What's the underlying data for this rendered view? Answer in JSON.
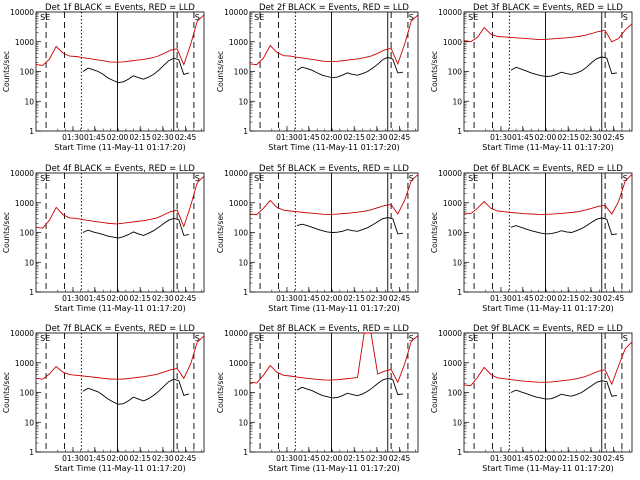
{
  "chart_data": [
    {
      "type": "line",
      "title": "Det 1f BLACK = Events, RED = LLD",
      "xlabel": "Start Time (11-May-11 01:17:20)",
      "ylabel": "Counts/sec",
      "x_tick_labels": [
        "01:30",
        "01:45",
        "02:00",
        "02:15",
        "02:30",
        "02:45"
      ],
      "y_tick_labels": [
        "1",
        "10",
        "100",
        "1000",
        "10000"
      ],
      "markers": [
        "S",
        "E",
        "S"
      ],
      "ylim": [
        1,
        10000
      ],
      "yscale": "log",
      "series": [
        {
          "name": "Events",
          "color": "#000000",
          "values": [
            0,
            0,
            0,
            0,
            100,
            130,
            115,
            100,
            80,
            60,
            50,
            42,
            45,
            55,
            72,
            62,
            55,
            65,
            80,
            110,
            160,
            230,
            280,
            250,
            80,
            90
          ]
        },
        {
          "name": "LLD",
          "color": "#cc0000",
          "values": [
            170,
            160,
            260,
            700,
            420,
            330,
            320,
            290,
            270,
            250,
            230,
            210,
            205,
            210,
            225,
            240,
            255,
            280,
            320,
            400,
            520,
            580,
            170,
            800,
            5000,
            8000
          ]
        }
      ]
    },
    {
      "type": "line",
      "title": "Det 2f BLACK = Events, RED = LLD",
      "xlabel": "Start Time (11-May-11 01:17:20)",
      "ylabel": "Counts/sec",
      "x_tick_labels": [
        "01:30",
        "01:45",
        "02:00",
        "02:15",
        "02:30",
        "02:45"
      ],
      "y_tick_labels": [
        "1",
        "10",
        "100",
        "1000",
        "10000"
      ],
      "markers": [
        "S",
        "E",
        "S"
      ],
      "ylim": [
        1,
        10000
      ],
      "yscale": "log",
      "series": [
        {
          "name": "Events",
          "color": "#000000",
          "values": [
            0,
            0,
            0,
            0,
            110,
            140,
            125,
            110,
            90,
            75,
            68,
            62,
            65,
            75,
            90,
            80,
            75,
            85,
            100,
            130,
            175,
            250,
            300,
            260,
            90,
            95
          ]
        },
        {
          "name": "LLD",
          "color": "#cc0000",
          "values": [
            180,
            170,
            280,
            750,
            440,
            340,
            330,
            300,
            280,
            260,
            240,
            220,
            215,
            220,
            235,
            250,
            265,
            290,
            330,
            410,
            530,
            600,
            180,
            820,
            5000,
            8000
          ]
        }
      ]
    },
    {
      "type": "line",
      "title": "Det 3f BLACK = Events, RED = LLD",
      "xlabel": "Start Time (11-May-11 01:17:20)",
      "ylabel": "Counts/sec",
      "x_tick_labels": [
        "01:30",
        "01:45",
        "02:00",
        "02:15",
        "02:30",
        "02:45"
      ],
      "y_tick_labels": [
        "1",
        "10",
        "100",
        "1000",
        "10000"
      ],
      "markers": [
        "S",
        "E",
        "S"
      ],
      "ylim": [
        1,
        10000
      ],
      "yscale": "log",
      "series": [
        {
          "name": "Events",
          "color": "#000000",
          "values": [
            0,
            0,
            0,
            0,
            110,
            140,
            120,
            105,
            90,
            80,
            72,
            68,
            70,
            80,
            95,
            85,
            80,
            90,
            105,
            140,
            200,
            270,
            310,
            280,
            85,
            90
          ]
        },
        {
          "name": "LLD",
          "color": "#cc0000",
          "values": [
            1100,
            1000,
            1400,
            3000,
            1800,
            1500,
            1450,
            1400,
            1350,
            1300,
            1250,
            1200,
            1200,
            1250,
            1300,
            1350,
            1400,
            1500,
            1650,
            1900,
            2200,
            2400,
            1000,
            1300,
            2500,
            4000
          ]
        }
      ]
    },
    {
      "type": "line",
      "title": "Det 4f BLACK = Events, RED = LLD",
      "xlabel": "Start Time (11-May-11 01:17:20)",
      "ylabel": "Counts/sec",
      "x_tick_labels": [
        "01:30",
        "01:45",
        "02:00",
        "02:15",
        "02:30",
        "02:45"
      ],
      "y_tick_labels": [
        "1",
        "10",
        "100",
        "1000",
        "10000"
      ],
      "markers": [
        "S",
        "E",
        "S"
      ],
      "ylim": [
        1,
        10000
      ],
      "yscale": "log",
      "series": [
        {
          "name": "Events",
          "color": "#000000",
          "values": [
            0,
            0,
            0,
            0,
            100,
            120,
            105,
            95,
            85,
            75,
            70,
            65,
            72,
            85,
            105,
            90,
            80,
            95,
            115,
            150,
            200,
            260,
            300,
            270,
            80,
            85
          ]
        },
        {
          "name": "LLD",
          "color": "#cc0000",
          "values": [
            150,
            140,
            260,
            700,
            400,
            310,
            300,
            270,
            250,
            230,
            215,
            200,
            195,
            205,
            220,
            235,
            250,
            275,
            310,
            390,
            500,
            560,
            160,
            780,
            4800,
            7800
          ]
        }
      ]
    },
    {
      "type": "line",
      "title": "Det 5f BLACK = Events, RED = LLD",
      "xlabel": "Start Time (11-May-11 01:17:20)",
      "ylabel": "Counts/sec",
      "x_tick_labels": [
        "01:30",
        "01:45",
        "02:00",
        "02:15",
        "02:30",
        "02:45"
      ],
      "y_tick_labels": [
        "1",
        "10",
        "100",
        "1000",
        "10000"
      ],
      "markers": [
        "S",
        "E",
        "S"
      ],
      "ylim": [
        1,
        10000
      ],
      "yscale": "log",
      "series": [
        {
          "name": "Events",
          "color": "#000000",
          "values": [
            0,
            0,
            0,
            0,
            170,
            190,
            170,
            150,
            130,
            115,
            105,
            100,
            102,
            110,
            125,
            115,
            110,
            125,
            145,
            180,
            230,
            290,
            320,
            290,
            90,
            95
          ]
        },
        {
          "name": "LLD",
          "color": "#cc0000",
          "values": [
            420,
            400,
            650,
            1200,
            700,
            560,
            530,
            500,
            470,
            450,
            430,
            410,
            405,
            415,
            435,
            455,
            480,
            520,
            580,
            680,
            800,
            870,
            420,
            1200,
            5500,
            9000
          ]
        }
      ]
    },
    {
      "type": "line",
      "title": "Det 6f BLACK = Events, RED = LLD",
      "xlabel": "Start Time (11-May-11 01:17:20)",
      "ylabel": "Counts/sec",
      "x_tick_labels": [
        "01:30",
        "01:45",
        "02:00",
        "02:15",
        "02:30",
        "02:45"
      ],
      "y_tick_labels": [
        "1",
        "10",
        "100",
        "1000",
        "10000"
      ],
      "markers": [
        "S",
        "E",
        "S"
      ],
      "ylim": [
        1,
        10000
      ],
      "yscale": "log",
      "series": [
        {
          "name": "Events",
          "color": "#000000",
          "values": [
            0,
            0,
            0,
            0,
            150,
            170,
            150,
            130,
            115,
            105,
            95,
            90,
            92,
            100,
            115,
            105,
            100,
            115,
            135,
            170,
            220,
            280,
            310,
            280,
            85,
            90
          ]
        },
        {
          "name": "LLD",
          "color": "#cc0000",
          "values": [
            450,
            430,
            650,
            1100,
            650,
            530,
            500,
            470,
            450,
            430,
            420,
            410,
            405,
            415,
            430,
            450,
            470,
            500,
            560,
            650,
            760,
            820,
            420,
            1100,
            5500,
            9000
          ]
        }
      ]
    },
    {
      "type": "line",
      "title": "Det 7f BLACK = Events, RED = LLD",
      "xlabel": "Start Time (11-May-11 01:17:20)",
      "ylabel": "Counts/sec",
      "x_tick_labels": [
        "01:30",
        "01:45",
        "02:00",
        "02:15",
        "02:30",
        "02:45"
      ],
      "y_tick_labels": [
        "1",
        "10",
        "100",
        "1000",
        "10000"
      ],
      "markers": [
        "S",
        "E",
        "S"
      ],
      "ylim": [
        1,
        10000
      ],
      "yscale": "log",
      "series": [
        {
          "name": "Events",
          "color": "#000000",
          "values": [
            0,
            0,
            0,
            0,
            110,
            140,
            120,
            105,
            80,
            60,
            48,
            40,
            42,
            52,
            70,
            60,
            52,
            62,
            80,
            110,
            160,
            230,
            280,
            250,
            80,
            90
          ]
        },
        {
          "name": "LLD",
          "color": "#cc0000",
          "values": [
            300,
            280,
            420,
            750,
            480,
            400,
            380,
            360,
            340,
            320,
            300,
            285,
            280,
            285,
            300,
            320,
            340,
            370,
            410,
            480,
            580,
            640,
            300,
            900,
            5000,
            8000
          ]
        }
      ]
    },
    {
      "type": "line",
      "title": "Det 8f BLACK = Events, RED = LLD",
      "xlabel": "Start Time (11-May-11 01:17:20)",
      "ylabel": "Counts/sec",
      "x_tick_labels": [
        "01:30",
        "01:45",
        "02:00",
        "02:15",
        "02:30",
        "02:45"
      ],
      "y_tick_labels": [
        "1",
        "10",
        "100",
        "1000",
        "10000"
      ],
      "markers": [
        "S",
        "E",
        "S"
      ],
      "ylim": [
        1,
        10000
      ],
      "yscale": "log",
      "series": [
        {
          "name": "Events",
          "color": "#000000",
          "values": [
            0,
            0,
            0,
            0,
            120,
            150,
            130,
            115,
            95,
            80,
            72,
            66,
            68,
            78,
            95,
            85,
            78,
            90,
            110,
            145,
            200,
            265,
            300,
            270,
            85,
            90
          ]
        },
        {
          "name": "LLD",
          "color": "#cc0000",
          "values": [
            220,
            210,
            380,
            800,
            480,
            380,
            360,
            330,
            310,
            290,
            275,
            265,
            262,
            270,
            285,
            300,
            320,
            10000,
            10000,
            420,
            520,
            600,
            220,
            900,
            5200,
            8200
          ]
        }
      ]
    },
    {
      "type": "line",
      "title": "Det 9f BLACK = Events, RED = LLD",
      "xlabel": "Start Time (11-May-11 01:17:20)",
      "ylabel": "Counts/sec",
      "x_tick_labels": [
        "01:30",
        "01:45",
        "02:00",
        "02:15",
        "02:30",
        "02:45"
      ],
      "y_tick_labels": [
        "1",
        "10",
        "100",
        "1000",
        "10000"
      ],
      "markers": [
        "S",
        "E",
        "S"
      ],
      "ylim": [
        1,
        10000
      ],
      "yscale": "log",
      "series": [
        {
          "name": "Events",
          "color": "#000000",
          "values": [
            0,
            0,
            0,
            0,
            100,
            120,
            105,
            92,
            80,
            70,
            65,
            60,
            62,
            72,
            88,
            80,
            75,
            85,
            100,
            130,
            170,
            220,
            250,
            230,
            75,
            80
          ]
        },
        {
          "name": "LLD",
          "color": "#cc0000",
          "values": [
            180,
            170,
            320,
            700,
            400,
            310,
            290,
            270,
            255,
            240,
            230,
            222,
            220,
            228,
            240,
            255,
            270,
            300,
            340,
            420,
            520,
            580,
            190,
            800,
            3000,
            5000
          ]
        }
      ]
    }
  ]
}
